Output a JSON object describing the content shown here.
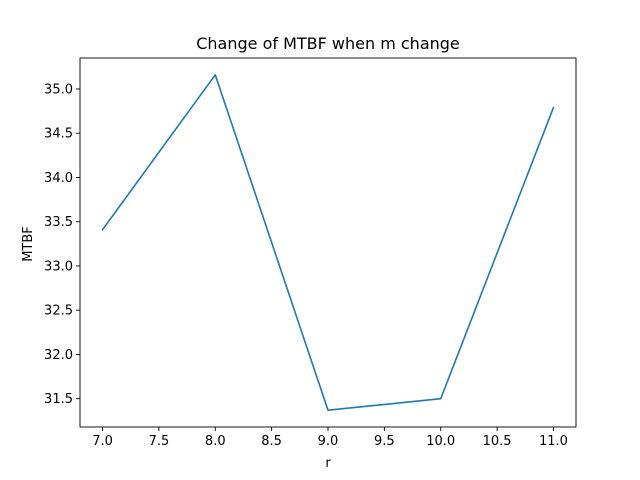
{
  "chart_data": {
    "type": "line",
    "title": "Change of MTBF when m change",
    "xlabel": "r",
    "ylabel": "MTBF",
    "x": [
      7.0,
      8.0,
      9.0,
      10.0,
      11.0
    ],
    "series": [
      {
        "values": [
          33.41,
          35.16,
          31.37,
          31.5,
          34.79
        ],
        "color": "#1f77b4"
      }
    ],
    "xlim": [
      6.8,
      11.2
    ],
    "ylim": [
      31.18,
      35.35
    ],
    "xticks": [
      "7.0",
      "7.5",
      "8.0",
      "8.5",
      "9.0",
      "9.5",
      "10.0",
      "10.5",
      "11.0"
    ],
    "yticks": [
      "31.5",
      "32.0",
      "32.5",
      "33.0",
      "33.5",
      "34.0",
      "34.5",
      "35.0"
    ],
    "grid": false,
    "legend": "none"
  }
}
